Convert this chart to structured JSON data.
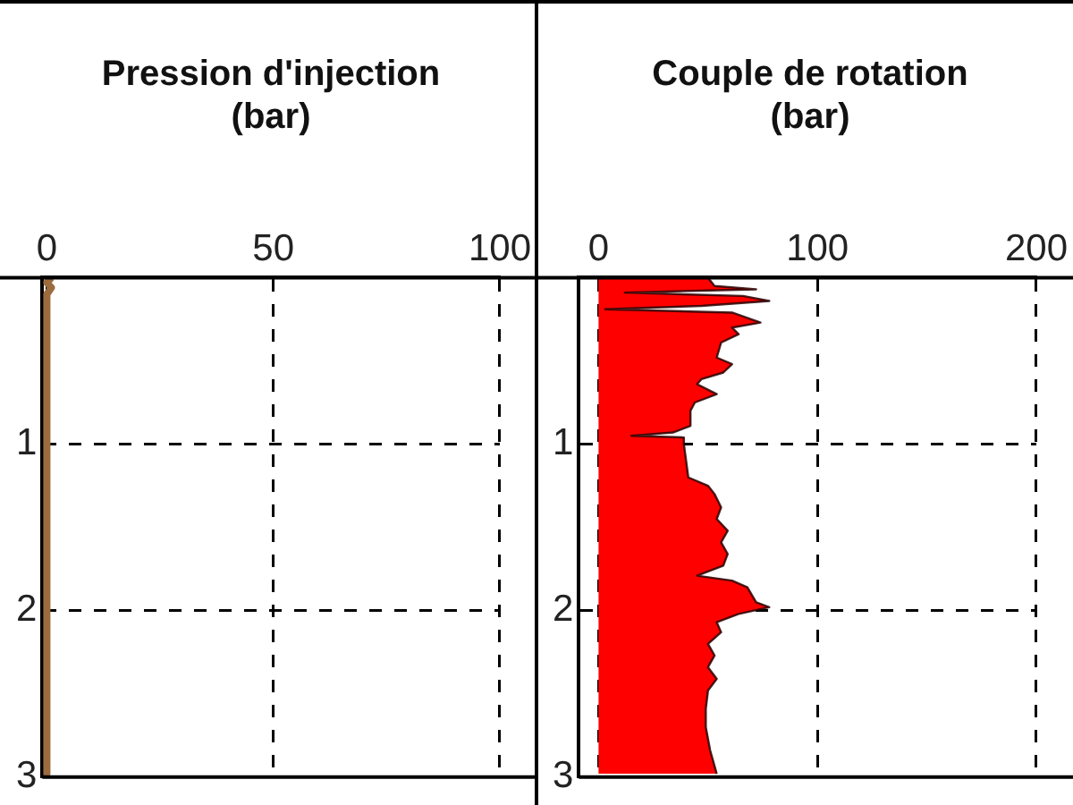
{
  "chart_data": [
    {
      "type": "line",
      "title": "Pression d'injection (bar)",
      "orientation": "horizontal",
      "grid": true,
      "xlim": [
        -1,
        100
      ],
      "xticks": [
        0,
        50,
        100
      ],
      "ylim": [
        3,
        0
      ],
      "yticks": [
        1,
        2,
        3
      ],
      "series": [
        {
          "color": "#9c6b3e",
          "x": [
            0,
            0.03,
            0.06,
            0.1,
            0.5,
            1,
            1.5,
            2,
            2.5,
            2.98
          ],
          "values": [
            1,
            0,
            1,
            0,
            0,
            0,
            0,
            0,
            0,
            0
          ]
        }
      ]
    },
    {
      "type": "area",
      "title": "Couple de rotation (bar)",
      "orientation": "horizontal",
      "grid": true,
      "xlim": [
        -9,
        200
      ],
      "xticks": [
        0,
        100,
        200
      ],
      "ylim": [
        3,
        0
      ],
      "yticks": [
        1,
        2,
        3
      ],
      "series": [
        {
          "color": "#ff0000",
          "x": [
            0,
            0.05,
            0.07,
            0.09,
            0.11,
            0.14,
            0.17,
            0.19,
            0.21,
            0.27,
            0.3,
            0.34,
            0.39,
            0.48,
            0.52,
            0.57,
            0.61,
            0.64,
            0.7,
            0.75,
            0.8,
            0.89,
            0.93,
            0.95,
            0.96,
            1,
            1.2,
            1.25,
            1.3,
            1.38,
            1.45,
            1.52,
            1.59,
            1.66,
            1.73,
            1.79,
            1.82,
            1.86,
            1.95,
            1.98,
            2.02,
            2.07,
            2.13,
            2.2,
            2.27,
            2.34,
            2.41,
            2.48,
            2.59,
            2.7,
            2.84,
            2.98
          ],
          "values": [
            50,
            53,
            72,
            12,
            66,
            78,
            47,
            3,
            61,
            74,
            61,
            64,
            56,
            54,
            61,
            57,
            47,
            45,
            54,
            44,
            42,
            42,
            34,
            15,
            39,
            39,
            41,
            50,
            53,
            56,
            54,
            59,
            56,
            59,
            57,
            45,
            61,
            68,
            72,
            78,
            64,
            54,
            56,
            50,
            53,
            50,
            54,
            50,
            49,
            49,
            51,
            54
          ]
        }
      ]
    }
  ]
}
